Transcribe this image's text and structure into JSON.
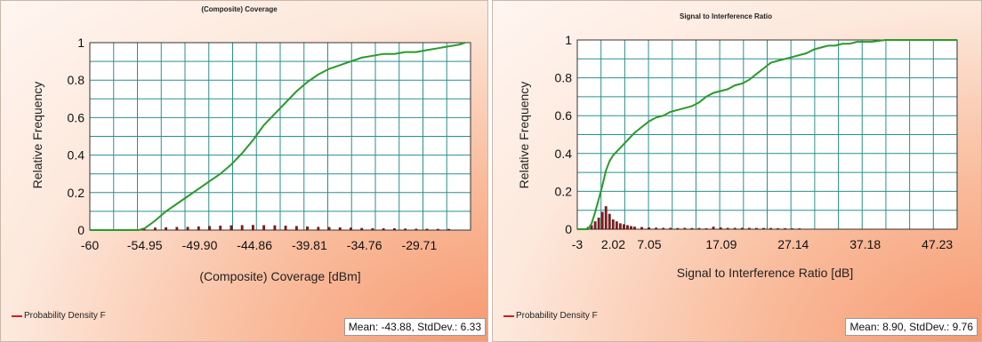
{
  "chart_data": [
    {
      "type": "line",
      "title": "(Composite) Coverage",
      "xlabel": "(Composite) Coverage [dBm]",
      "ylabel": "Relative Frequency",
      "xlim": [
        -60,
        -25
      ],
      "ylim": [
        0,
        1
      ],
      "x_ticks": [
        "-60",
        "-54.95",
        "-49.90",
        "-44.86",
        "-39.81",
        "-34.76",
        "-29.71"
      ],
      "y_ticks": [
        "0",
        "0.2",
        "0.4",
        "0.6",
        "0.8",
        "1"
      ],
      "grid": true,
      "series": [
        {
          "name": "",
          "color": "#2a9a2a",
          "x": [
            -60,
            -55.5,
            -54.95,
            -54,
            -53,
            -52,
            -51,
            -50,
            -49,
            -48,
            -47,
            -46,
            -45,
            -44,
            -43,
            -42,
            -41,
            -40,
            -39,
            -38,
            -37,
            -36,
            -35,
            -34,
            -33,
            -32,
            -31,
            -30,
            -29,
            -28,
            -27,
            -26,
            -25.5
          ],
          "y": [
            0,
            0,
            0.01,
            0.05,
            0.1,
            0.14,
            0.18,
            0.22,
            0.26,
            0.3,
            0.35,
            0.41,
            0.48,
            0.56,
            0.62,
            0.68,
            0.74,
            0.79,
            0.83,
            0.86,
            0.88,
            0.9,
            0.92,
            0.93,
            0.94,
            0.94,
            0.95,
            0.95,
            0.96,
            0.97,
            0.98,
            0.99,
            1
          ]
        }
      ],
      "histogram": {
        "name": "Probability Density F",
        "color": "#8b1a1a",
        "x": [
          -55,
          -54,
          -53,
          -52,
          -51,
          -50,
          -49,
          -48,
          -47,
          -46,
          -45,
          -44,
          -43,
          -42,
          -41,
          -40,
          -39,
          -38,
          -37,
          -36,
          -35,
          -34,
          -33,
          -32,
          -31,
          -30,
          -29,
          -28,
          -27
        ],
        "y": [
          0.01,
          0.012,
          0.014,
          0.015,
          0.016,
          0.018,
          0.02,
          0.022,
          0.024,
          0.025,
          0.026,
          0.025,
          0.024,
          0.022,
          0.02,
          0.018,
          0.016,
          0.015,
          0.013,
          0.012,
          0.01,
          0.009,
          0.008,
          0.008,
          0.007,
          0.006,
          0.006,
          0.005,
          0.005
        ]
      },
      "legend": "Probability Density F",
      "stats": "Mean: -43.88, StdDev.: 6.33"
    },
    {
      "type": "line",
      "title": "Signal to Interference Ratio",
      "xlabel": "Signal to Interference Ratio [dB]",
      "ylabel": "Relative Frequency",
      "xlim": [
        -3,
        50
      ],
      "ylim": [
        0,
        1
      ],
      "x_ticks": [
        "-3",
        "2.02",
        "7.05",
        "17.09",
        "27.14",
        "37.18",
        "47.23"
      ],
      "x_tick_values": [
        -3,
        2.02,
        7.05,
        17.09,
        27.14,
        37.18,
        47.23
      ],
      "y_ticks": [
        "0",
        "0.2",
        "0.4",
        "0.6",
        "0.8",
        "1"
      ],
      "grid": true,
      "series": [
        {
          "name": "",
          "color": "#2a9a2a",
          "x": [
            -3,
            -1.5,
            -1,
            -0.5,
            0,
            0.5,
            1,
            1.5,
            2,
            3,
            4,
            5,
            6,
            7,
            8,
            9,
            10,
            11,
            12,
            13,
            14,
            15,
            16,
            17,
            18,
            19,
            20,
            21,
            22,
            23,
            24,
            25,
            26,
            27,
            28,
            29,
            30,
            31,
            32,
            33,
            34,
            35,
            36,
            37,
            38,
            40,
            45,
            50
          ],
          "y": [
            0,
            0,
            0.03,
            0.09,
            0.16,
            0.23,
            0.31,
            0.36,
            0.39,
            0.43,
            0.47,
            0.51,
            0.54,
            0.57,
            0.59,
            0.6,
            0.62,
            0.63,
            0.64,
            0.65,
            0.67,
            0.7,
            0.72,
            0.73,
            0.74,
            0.76,
            0.77,
            0.79,
            0.82,
            0.85,
            0.88,
            0.89,
            0.9,
            0.91,
            0.92,
            0.93,
            0.95,
            0.96,
            0.97,
            0.97,
            0.98,
            0.98,
            0.99,
            0.99,
            0.99,
            1,
            1,
            1
          ]
        }
      ],
      "histogram": {
        "name": "Probability Density F",
        "color": "#8b1a1a",
        "x": [
          -1.5,
          -1,
          -0.5,
          0,
          0.5,
          1,
          1.5,
          2,
          2.5,
          3,
          3.5,
          4,
          4.5,
          5,
          6,
          7,
          8,
          9,
          10,
          11,
          12,
          13,
          14,
          15,
          16,
          17,
          18,
          19,
          20,
          21,
          22,
          23,
          24,
          25,
          26,
          27,
          28
        ],
        "y": [
          0.01,
          0.02,
          0.04,
          0.06,
          0.09,
          0.12,
          0.08,
          0.05,
          0.04,
          0.03,
          0.025,
          0.02,
          0.015,
          0.012,
          0.01,
          0.008,
          0.007,
          0.006,
          0.006,
          0.005,
          0.006,
          0.005,
          0.005,
          0.004,
          0.012,
          0.008,
          0.006,
          0.006,
          0.006,
          0.006,
          0.005,
          0.005,
          0.005,
          0.004,
          0.004,
          0.003,
          0.003
        ]
      },
      "legend": "Probability Density F",
      "stats": "Mean: 8.90, StdDev.: 9.76"
    }
  ]
}
